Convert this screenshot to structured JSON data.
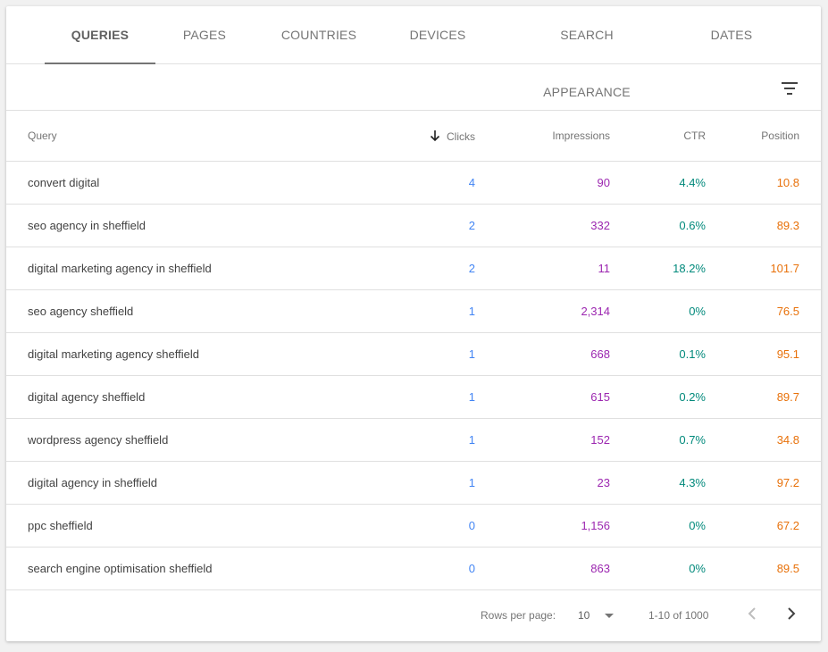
{
  "tabs": [
    {
      "label": "QUERIES"
    },
    {
      "label": "PAGES"
    },
    {
      "label": "COUNTRIES"
    },
    {
      "label": "DEVICES"
    },
    {
      "label": "SEARCH APPEARANCE"
    },
    {
      "label": "DATES"
    }
  ],
  "active_tab": "QUERIES",
  "table": {
    "headers": {
      "query": "Query",
      "clicks": "Clicks",
      "impressions": "Impressions",
      "ctr": "CTR",
      "position": "Position"
    },
    "sorted_by": "Clicks",
    "sort_direction": "descending",
    "rows": [
      {
        "query": "convert digital",
        "clicks": "4",
        "impressions": "90",
        "ctr": "4.4%",
        "position": "10.8"
      },
      {
        "query": "seo agency in sheffield",
        "clicks": "2",
        "impressions": "332",
        "ctr": "0.6%",
        "position": "89.3"
      },
      {
        "query": "digital marketing agency in sheffield",
        "clicks": "2",
        "impressions": "11",
        "ctr": "18.2%",
        "position": "101.7"
      },
      {
        "query": "seo agency sheffield",
        "clicks": "1",
        "impressions": "2,314",
        "ctr": "0%",
        "position": "76.5"
      },
      {
        "query": "digital marketing agency sheffield",
        "clicks": "1",
        "impressions": "668",
        "ctr": "0.1%",
        "position": "95.1"
      },
      {
        "query": "digital agency sheffield",
        "clicks": "1",
        "impressions": "615",
        "ctr": "0.2%",
        "position": "89.7"
      },
      {
        "query": "wordpress agency sheffield",
        "clicks": "1",
        "impressions": "152",
        "ctr": "0.7%",
        "position": "34.8"
      },
      {
        "query": "digital agency in sheffield",
        "clicks": "1",
        "impressions": "23",
        "ctr": "4.3%",
        "position": "97.2"
      },
      {
        "query": "ppc sheffield",
        "clicks": "0",
        "impressions": "1,156",
        "ctr": "0%",
        "position": "67.2"
      },
      {
        "query": "search engine optimisation sheffield",
        "clicks": "0",
        "impressions": "863",
        "ctr": "0%",
        "position": "89.5"
      }
    ]
  },
  "pagination": {
    "rows_per_page_label": "Rows per page:",
    "rows_per_page_value": "10",
    "range_text": "1-10 of 1000"
  },
  "icons": {
    "filter": "filter-icon",
    "sort": "arrow-down-icon",
    "dropdown": "caret-down-icon",
    "prev": "chevron-left-icon",
    "next": "chevron-right-icon"
  },
  "colors": {
    "clicks": "#4285f4",
    "impressions": "#9c27b0",
    "ctr": "#00897b",
    "position": "#e8710a"
  }
}
